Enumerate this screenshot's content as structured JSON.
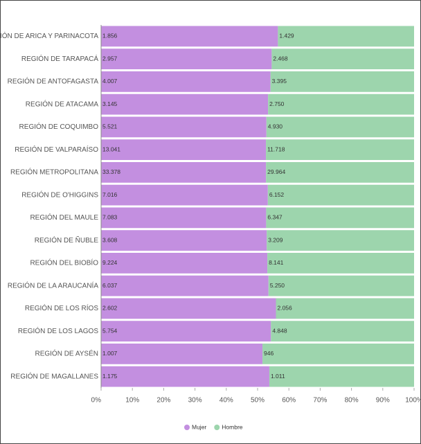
{
  "chart_data": {
    "type": "stacked_bar_100",
    "categories": [
      "REGIÓN DE ARICA Y PARINACOTA",
      "REGIÓN DE TARAPACÁ",
      "REGIÓN DE ANTOFAGASTA",
      "REGIÓN DE ATACAMA",
      "REGIÓN DE COQUIMBO",
      "REGIÓN DE VALPARAÍSO",
      "REGIÓN METROPOLITANA",
      "REGIÓN DE O'HIGGINS",
      "REGIÓN DEL MAULE",
      "REGIÓN DE ÑUBLE",
      "REGIÓN DEL BIOBÍO",
      "REGIÓN DE LA ARAUCANÍA",
      "REGIÓN DE LOS RÍOS",
      "REGIÓN DE LOS LAGOS",
      "REGIÓN DE AYSÉN",
      "REGIÓN DE MAGALLANES"
    ],
    "series": [
      {
        "name": "Mujer",
        "color": "#c38fe0",
        "values": [
          1856,
          2957,
          4007,
          3145,
          5521,
          13041,
          33378,
          7016,
          7083,
          3608,
          9224,
          6037,
          2602,
          5754,
          1007,
          1175
        ],
        "value_labels": [
          "1.856",
          "2.957",
          "4.007",
          "3.145",
          "5.521",
          "13.041",
          "33.378",
          "7.016",
          "7.083",
          "3.608",
          "9.224",
          "6.037",
          "2.602",
          "5.754",
          "1.007",
          "1.175"
        ]
      },
      {
        "name": "Hombre",
        "color": "#9dd5ad",
        "values": [
          1429,
          2468,
          3395,
          2750,
          4930,
          11718,
          29964,
          6152,
          6347,
          3209,
          8141,
          5250,
          2056,
          4848,
          946,
          1011
        ],
        "value_labels": [
          "1.429",
          "2.468",
          "3.395",
          "2.750",
          "4.930",
          "11.718",
          "29.964",
          "6.152",
          "6.347",
          "3.209",
          "8.141",
          "5.250",
          "2.056",
          "4.848",
          "946",
          "1.011"
        ]
      }
    ],
    "xlim": [
      0,
      100
    ],
    "xticks": [
      {
        "value": 0,
        "label": "0%"
      },
      {
        "value": 10,
        "label": "10%"
      },
      {
        "value": 20,
        "label": "20%"
      },
      {
        "value": 30,
        "label": "30%"
      },
      {
        "value": 40,
        "label": "40%"
      },
      {
        "value": 50,
        "label": "50%"
      },
      {
        "value": 60,
        "label": "60%"
      },
      {
        "value": 70,
        "label": "70%"
      },
      {
        "value": 80,
        "label": "80%"
      },
      {
        "value": 90,
        "label": "90%"
      },
      {
        "value": 100,
        "label": "100%"
      }
    ],
    "legend": "bottom"
  }
}
